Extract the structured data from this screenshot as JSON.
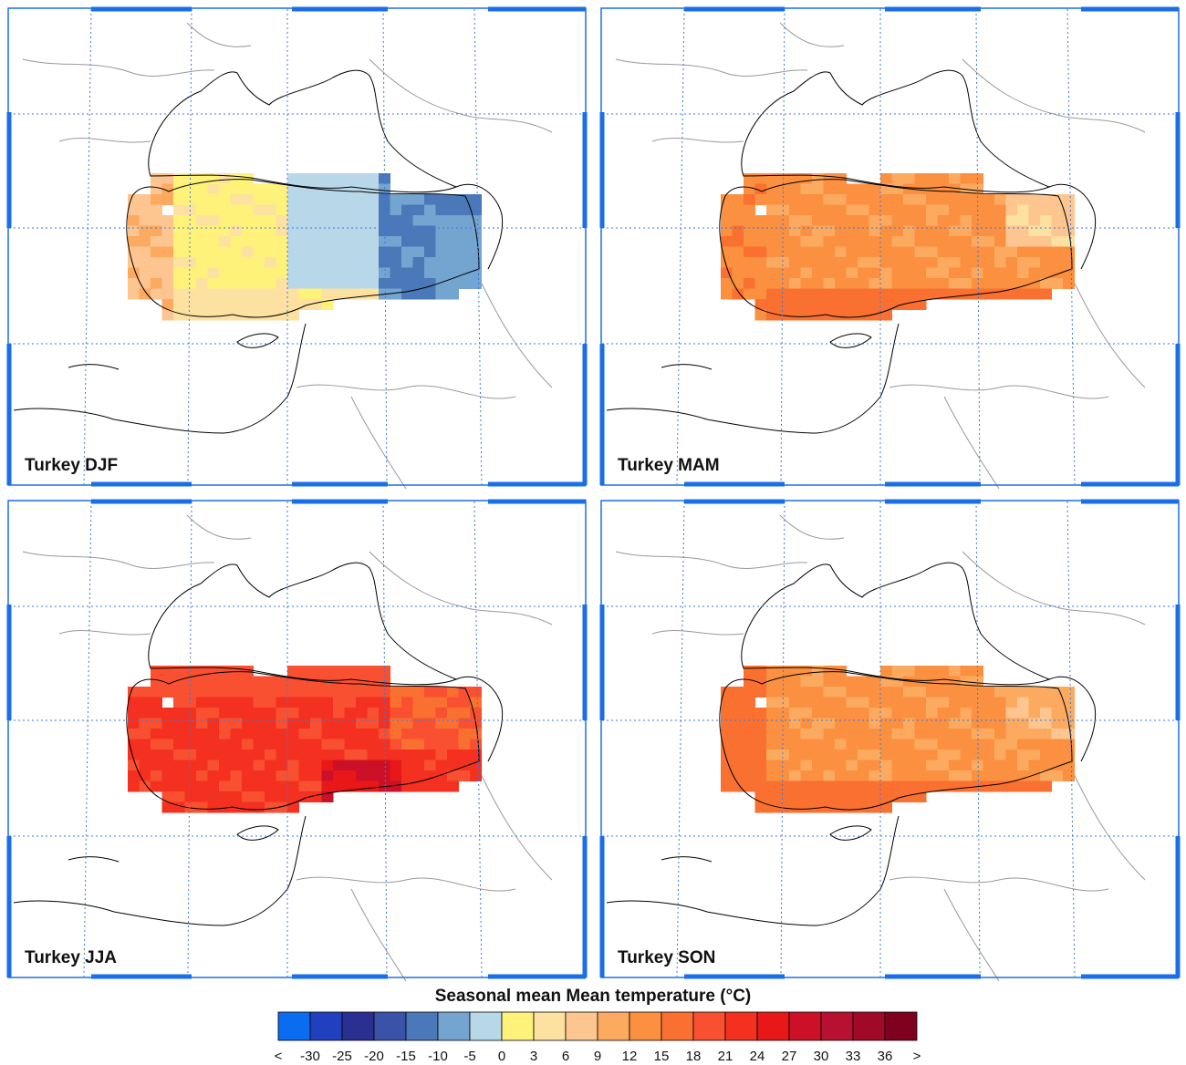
{
  "panels": [
    {
      "label": "Turkey DJF",
      "season": "DJF"
    },
    {
      "label": "Turkey MAM",
      "season": "MAM"
    },
    {
      "label": "Turkey JJA",
      "season": "JJA"
    },
    {
      "label": "Turkey SON",
      "season": "SON"
    }
  ],
  "legend": {
    "title": "Seasonal mean Mean temperature (°C)",
    "ticks": [
      "<",
      "-30",
      "-25",
      "-20",
      "-15",
      "-10",
      "-5",
      "0",
      "3",
      "6",
      "9",
      "12",
      "15",
      "18",
      "21",
      "24",
      "27",
      "30",
      "33",
      "36",
      ">"
    ],
    "colors": [
      "#0a6cf0",
      "#2040c0",
      "#2a2f92",
      "#3a52a8",
      "#4a78b8",
      "#74a4d0",
      "#b8d8ea",
      "#fff27a",
      "#fde1a0",
      "#fdc590",
      "#fcaa60",
      "#fb9040",
      "#fa7030",
      "#f85030",
      "#f43020",
      "#e81818",
      "#cc1028",
      "#b81030",
      "#a00a28",
      "#800020"
    ]
  },
  "colors": {
    "frame_blue": "#1a6ee8",
    "grid_blue": "#3a7ae0",
    "coastline": "#000000",
    "border": "#999999"
  }
}
